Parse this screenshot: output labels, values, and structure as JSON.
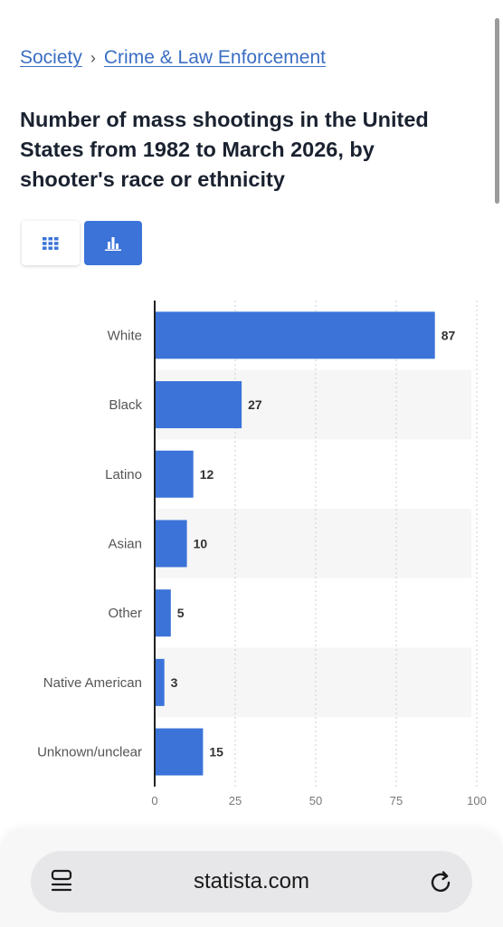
{
  "breadcrumb": {
    "items": [
      "Society",
      "Crime & Law Enforcement"
    ],
    "separator": "›"
  },
  "title": "Number of mass shootings in the United States from 1982 to March 2026, by shooter's race or ethnicity",
  "view_toggle": {
    "table_icon": "grid-icon",
    "chart_icon": "bar-chart-icon",
    "active": "chart"
  },
  "colors": {
    "accent": "#3b73d8",
    "link": "#3a6fc4",
    "bar": "#3b73d8"
  },
  "chart_data": {
    "type": "bar",
    "orientation": "horizontal",
    "categories": [
      "White",
      "Black",
      "Latino",
      "Asian",
      "Other",
      "Native American",
      "Unknown/unclear"
    ],
    "values": [
      87,
      27,
      12,
      10,
      5,
      3,
      15
    ],
    "xlim": [
      0,
      100
    ],
    "xticks": [
      0,
      25,
      50,
      75,
      100
    ],
    "grid": "vertical dashed",
    "data_labels": true
  },
  "browser": {
    "url": "statista.com",
    "reader_icon": "reader-mode-icon",
    "reload_icon": "reload-icon"
  }
}
